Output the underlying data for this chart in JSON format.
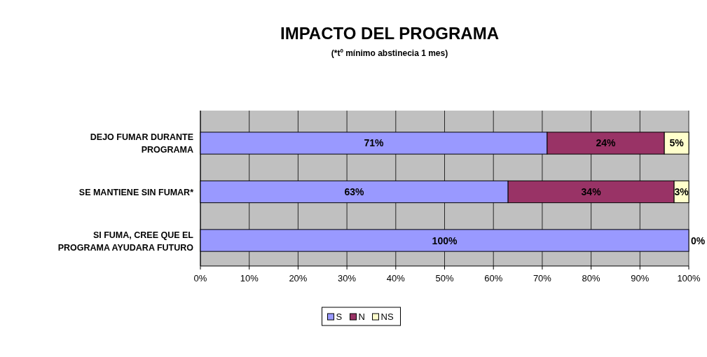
{
  "chart_data": {
    "type": "bar",
    "orientation": "horizontal",
    "stacked": true,
    "title": "IMPACTO DEL PROGRAMA",
    "subtitle": "(*tº mínimo abstinecia 1 mes)",
    "categories": [
      "DEJO FUMAR DURANTE PROGRAMA",
      "SE MANTIENE SIN FUMAR*",
      "SI FUMA, CREE QUE EL PROGRAMA AYUDARA FUTURO"
    ],
    "series": [
      {
        "name": "S",
        "color": "#9999ff",
        "values": [
          71,
          63,
          100
        ],
        "value_labels": [
          "71%",
          "63%",
          "100%"
        ]
      },
      {
        "name": "N",
        "color": "#993366",
        "values": [
          24,
          34,
          0
        ],
        "value_labels": [
          "24%",
          "34%",
          null
        ]
      },
      {
        "name": "NS",
        "color": "#ffffcc",
        "values": [
          5,
          3,
          0
        ],
        "value_labels": [
          "5%",
          "3%",
          "0%"
        ]
      }
    ],
    "xlim": [
      0,
      100
    ],
    "xticks": [
      {
        "value": 0,
        "label": "0%"
      },
      {
        "value": 10,
        "label": "10%"
      },
      {
        "value": 20,
        "label": "20%"
      },
      {
        "value": 30,
        "label": "30%"
      },
      {
        "value": 40,
        "label": "40%"
      },
      {
        "value": 50,
        "label": "50%"
      },
      {
        "value": 60,
        "label": "60%"
      },
      {
        "value": 70,
        "label": "70%"
      },
      {
        "value": 80,
        "label": "80%"
      },
      {
        "value": 90,
        "label": "90%"
      },
      {
        "value": 100,
        "label": "100%"
      }
    ],
    "grid": "x",
    "legend": "bottom"
  }
}
